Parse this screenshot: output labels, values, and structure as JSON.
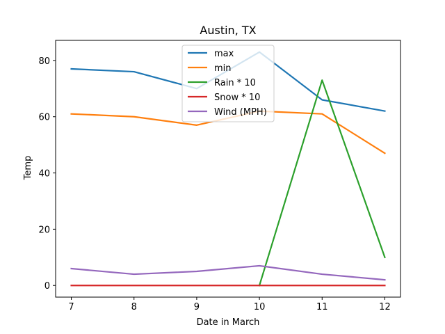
{
  "chart_data": {
    "type": "line",
    "title": "Austin, TX",
    "xlabel": "Date in March",
    "ylabel": "Temp",
    "x": [
      7,
      8,
      9,
      10,
      11,
      12
    ],
    "xlim": [
      6.75,
      12.25
    ],
    "ylim": [
      -4.15,
      87.15
    ],
    "xticks": [
      7,
      8,
      9,
      10,
      11,
      12
    ],
    "yticks": [
      0,
      20,
      40,
      60,
      80
    ],
    "grid": false,
    "legend_position": "top-center",
    "series": [
      {
        "name": "max",
        "color": "#1f77b4",
        "values": [
          77,
          76,
          70,
          83,
          66,
          62
        ]
      },
      {
        "name": "min",
        "color": "#ff7f0e",
        "values": [
          61,
          60,
          57,
          62,
          61,
          47
        ]
      },
      {
        "name": "Rain * 10",
        "color": "#2ca02c",
        "values": [
          null,
          null,
          null,
          0,
          73,
          10
        ]
      },
      {
        "name": "Snow * 10",
        "color": "#d62728",
        "values": [
          0,
          0,
          0,
          0,
          0,
          0
        ]
      },
      {
        "name": "Wind (MPH)",
        "color": "#9467bd",
        "values": [
          6,
          4,
          5,
          7,
          4,
          2
        ]
      }
    ]
  }
}
